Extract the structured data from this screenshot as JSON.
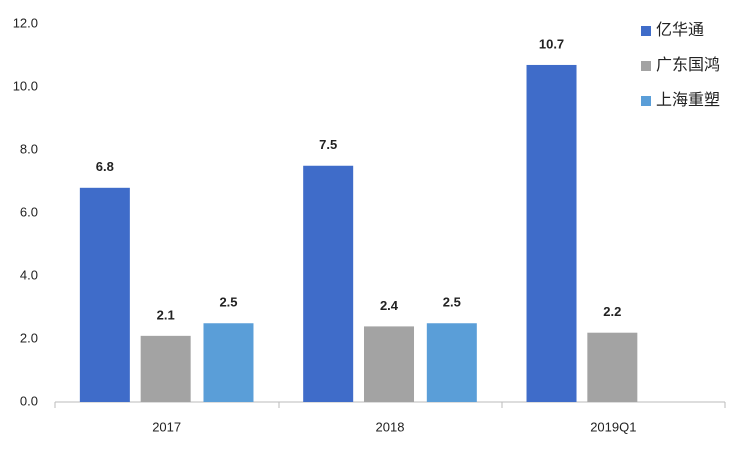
{
  "chart_data": {
    "type": "bar",
    "categories": [
      "2017",
      "2018",
      "2019Q1"
    ],
    "series": [
      {
        "name": "亿华通",
        "color": "#3f6cc9",
        "values": [
          6.8,
          7.5,
          10.7
        ]
      },
      {
        "name": "广东国鸿",
        "color": "#a3a3a3",
        "values": [
          2.1,
          2.4,
          2.2
        ]
      },
      {
        "name": "上海重塑",
        "color": "#5a9ed8",
        "values": [
          2.5,
          2.5,
          null
        ]
      }
    ],
    "ylim": [
      0,
      12
    ],
    "yticks": [
      {
        "value": 0,
        "label": "0.0"
      },
      {
        "value": 2,
        "label": "2.0"
      },
      {
        "value": 4,
        "label": "4.0"
      },
      {
        "value": 6,
        "label": "6.0"
      },
      {
        "value": 8,
        "label": "8.0"
      },
      {
        "value": 10,
        "label": "10.0"
      },
      {
        "value": 12,
        "label": "12.0"
      }
    ],
    "legend": "top-right"
  }
}
